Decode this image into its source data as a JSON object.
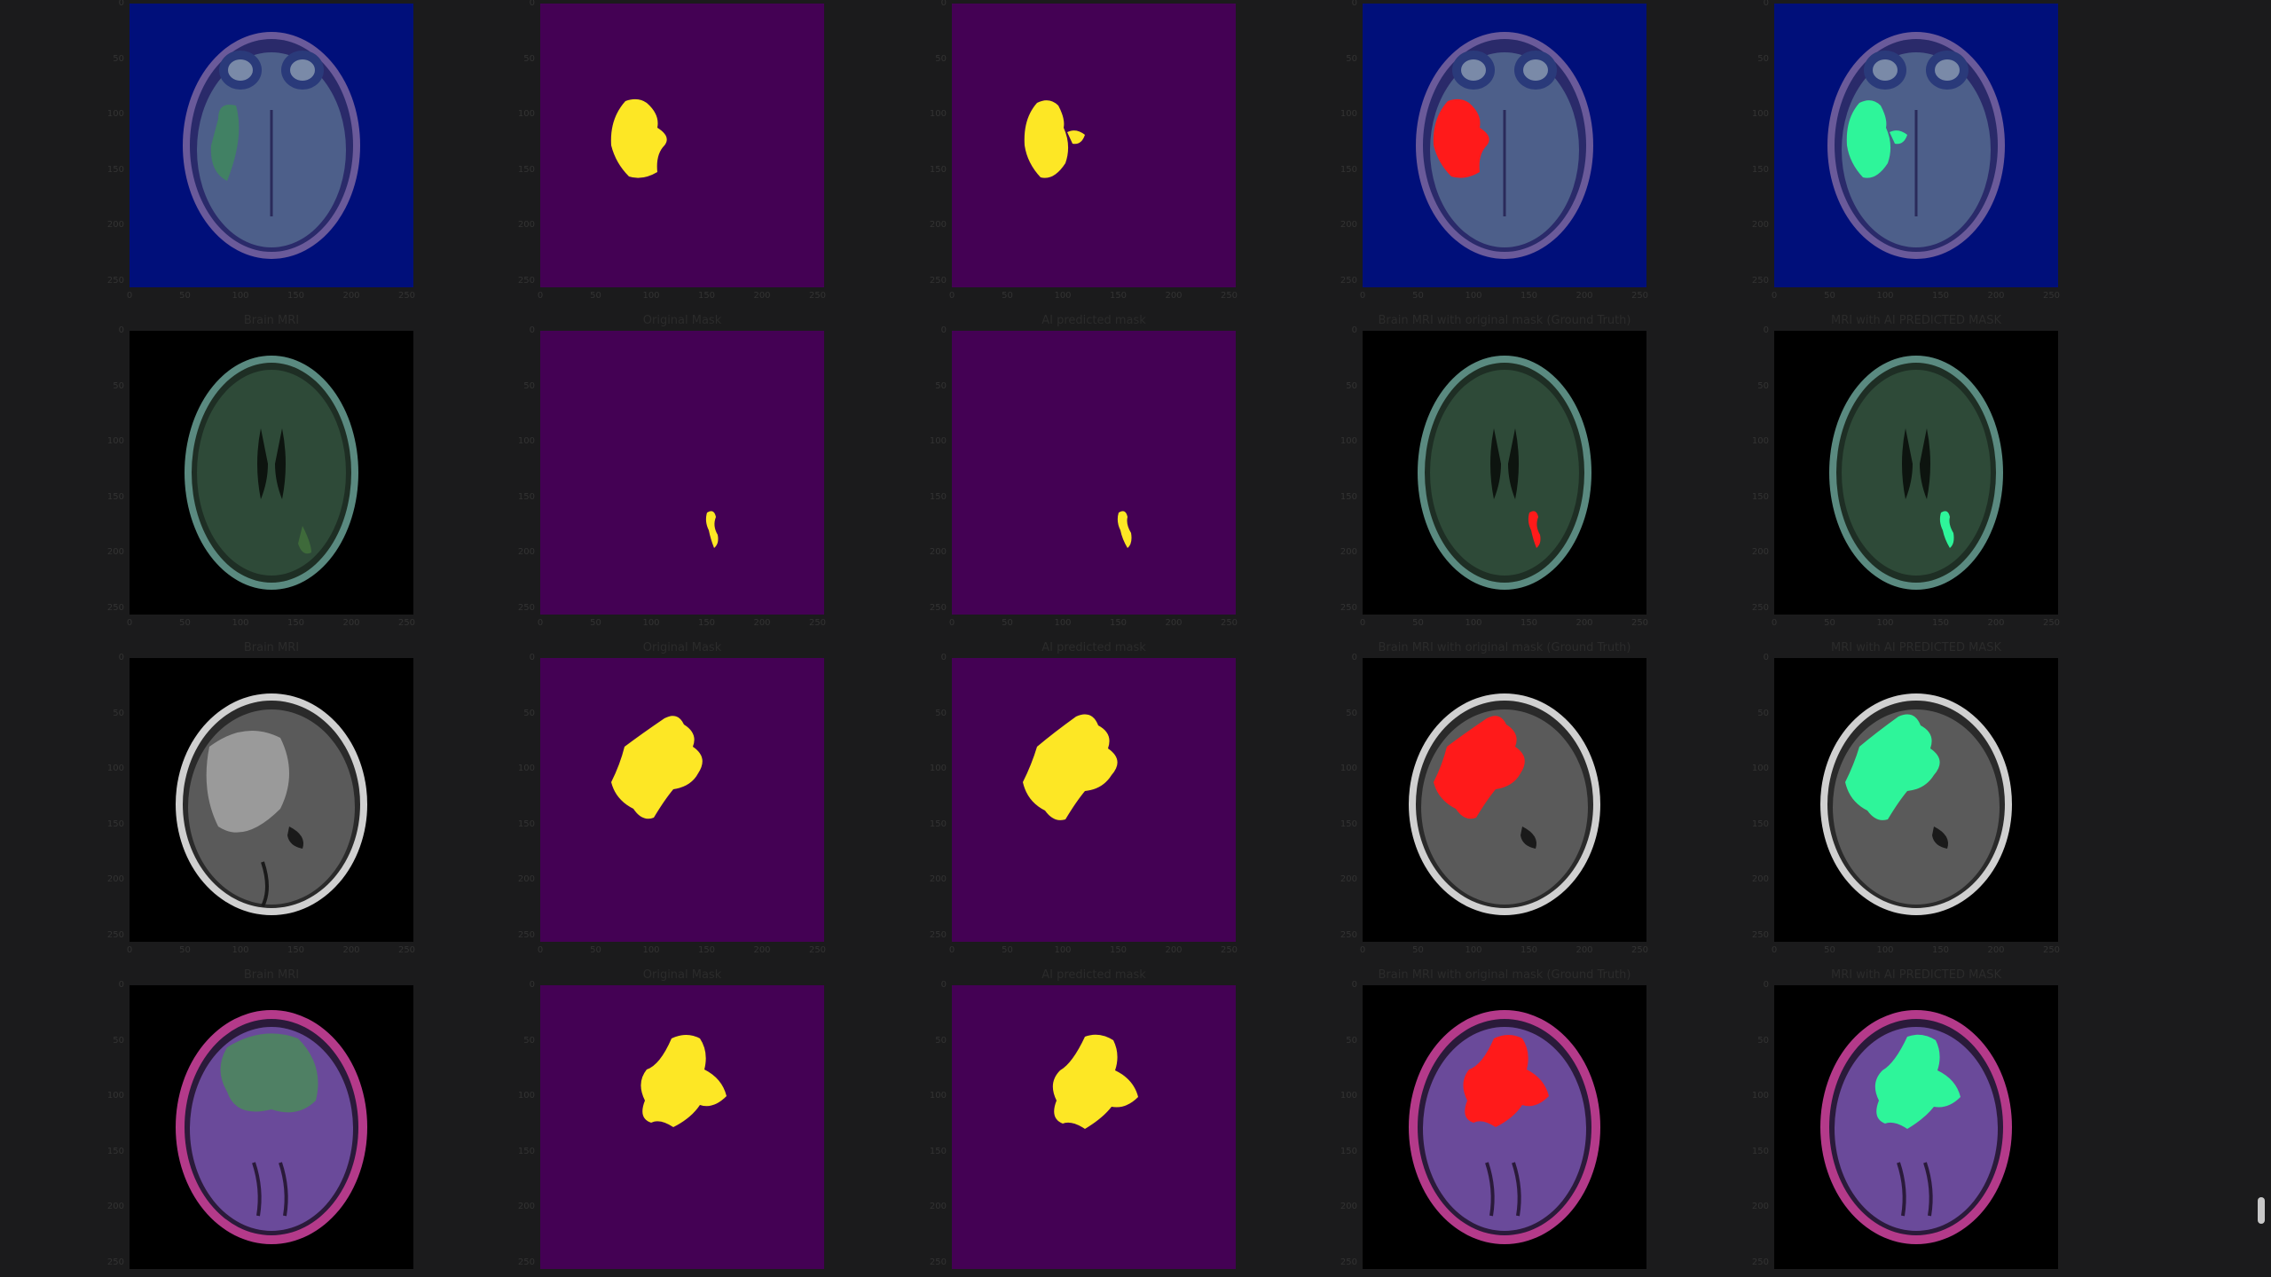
{
  "titles": {
    "mri": "Brain MRI",
    "original": "Original Mask",
    "predicted": "AI predicted mask",
    "ground_truth": "Brain MRI with original mask (Ground Truth)",
    "ai_overlay": "MRI with AI PREDICTED MASK"
  },
  "ticks": [
    "0",
    "50",
    "100",
    "150",
    "200",
    "250"
  ],
  "colors": {
    "mask_background": "#440154",
    "mask_foreground": "#fde725",
    "ground_truth_overlay": "#ff1a1a",
    "ai_overlay": "#2ef59a"
  },
  "rows": [
    {
      "scan": "row-1-mri"
    },
    {
      "scan": "row-2-mri"
    },
    {
      "scan": "row-3-mri"
    },
    {
      "scan": "row-4-mri"
    }
  ]
}
